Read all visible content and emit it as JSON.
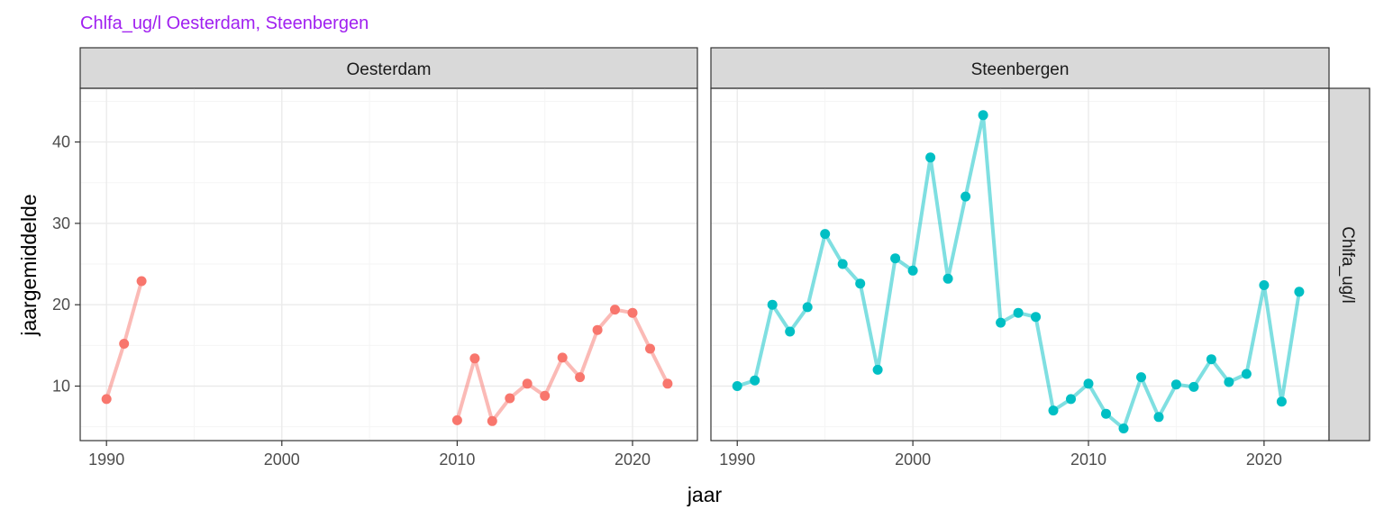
{
  "chart_data": {
    "type": "line",
    "title": "Chlfa_ug/l Oesterdam, Steenbergen",
    "xlabel": "jaar",
    "ylabel": "jaargemiddelde",
    "row_strip": "Chlfa_ug/l",
    "xlim": [
      1988.5,
      2023.7
    ],
    "ylim": [
      3.3,
      46.6
    ],
    "x_ticks": [
      1990,
      2000,
      2010,
      2020
    ],
    "y_ticks": [
      10,
      20,
      30,
      40
    ],
    "grid": true,
    "legend": "none",
    "colors": {
      "title": "#a020f0",
      "Oesterdam": "#f8766d",
      "Steenbergen": "#00bfc4",
      "strip_fill": "#d9d9d9",
      "grid_major": "#ebebeb",
      "grid_minor": "#f5f5f5",
      "frame": "#333333"
    },
    "panels": [
      {
        "name": "Oesterdam",
        "segments": [
          [
            [
              1990,
              8.4
            ],
            [
              1991,
              15.2
            ],
            [
              1992,
              22.9
            ]
          ],
          [
            [
              2010,
              5.8
            ],
            [
              2011,
              13.4
            ],
            [
              2012,
              5.7
            ],
            [
              2013,
              8.5
            ],
            [
              2014,
              10.3
            ],
            [
              2015,
              8.8
            ],
            [
              2016,
              13.5
            ],
            [
              2017,
              11.1
            ],
            [
              2018,
              16.9
            ],
            [
              2019,
              19.4
            ],
            [
              2020,
              19.0
            ],
            [
              2021,
              14.6
            ],
            [
              2022,
              10.3
            ]
          ]
        ]
      },
      {
        "name": "Steenbergen",
        "segments": [
          [
            [
              1990,
              10.0
            ],
            [
              1991,
              10.7
            ],
            [
              1992,
              20.0
            ],
            [
              1993,
              16.7
            ],
            [
              1994,
              19.7
            ],
            [
              1995,
              28.7
            ],
            [
              1996,
              25.0
            ],
            [
              1997,
              22.6
            ],
            [
              1998,
              12.0
            ],
            [
              1999,
              25.7
            ],
            [
              2000,
              24.2
            ],
            [
              2001,
              38.1
            ],
            [
              2002,
              23.2
            ],
            [
              2003,
              33.3
            ],
            [
              2004,
              43.3
            ],
            [
              2005,
              17.8
            ],
            [
              2006,
              19.0
            ],
            [
              2007,
              18.5
            ],
            [
              2008,
              7.0
            ],
            [
              2009,
              8.4
            ],
            [
              2010,
              10.3
            ],
            [
              2011,
              6.6
            ],
            [
              2012,
              4.8
            ],
            [
              2013,
              11.1
            ],
            [
              2014,
              6.2
            ],
            [
              2015,
              10.2
            ],
            [
              2016,
              9.9
            ],
            [
              2017,
              13.3
            ],
            [
              2018,
              10.5
            ],
            [
              2019,
              11.5
            ],
            [
              2020,
              22.4
            ],
            [
              2021,
              8.1
            ],
            [
              2022,
              21.6
            ]
          ]
        ]
      }
    ]
  }
}
